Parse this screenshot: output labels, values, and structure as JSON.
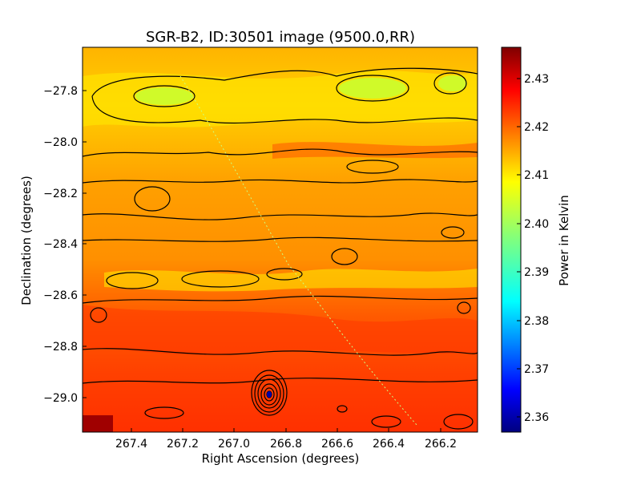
{
  "chart_data": {
    "type": "heatmap",
    "title": "SGR-B2, ID:30501 image (9500.0,RR)",
    "xlabel": "Right Ascension (degrees)",
    "ylabel": "Declination (degrees)",
    "colorbar_label": "Power in Kelvin",
    "colormap": "jet",
    "xlim": [
      267.59,
      266.06
    ],
    "ylim": [
      -29.14,
      -27.64
    ],
    "x_ticks": [
      "267.4",
      "267.2",
      "267.0",
      "266.8",
      "266.6",
      "266.4",
      "266.2"
    ],
    "y_ticks": [
      "−27.8",
      "−28.0",
      "−28.2",
      "−28.4",
      "−28.6",
      "−28.8",
      "−29.0"
    ],
    "colorbar_range": [
      2.357,
      2.436
    ],
    "colorbar_ticks": [
      "2.36",
      "2.37",
      "2.38",
      "2.39",
      "2.40",
      "2.41",
      "2.42",
      "2.43"
    ],
    "contours": true,
    "features": [
      {
        "ra": 266.87,
        "dec": -28.99,
        "value": 2.357,
        "kind": "minimum"
      },
      {
        "ra": 267.55,
        "dec": -29.1,
        "value": 2.436,
        "kind": "maximum"
      }
    ]
  }
}
